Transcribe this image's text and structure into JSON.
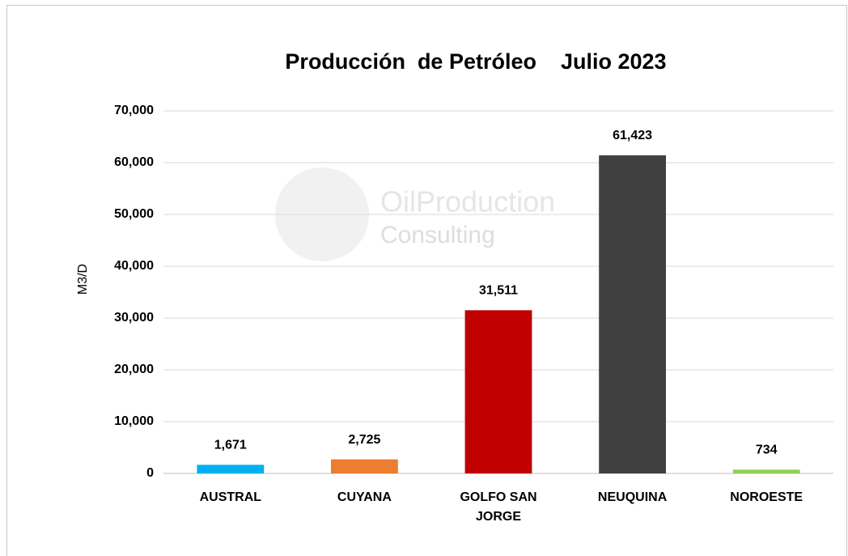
{
  "chart_data": {
    "type": "bar",
    "title": "Producción  de Petróleo    Julio 2023",
    "y_label": "M3/D",
    "watermark": [
      "OilProduction",
      "Consulting"
    ],
    "categories": [
      "AUSTRAL",
      "CUYANA",
      "GOLFO SAN JORGE",
      "NEUQUINA",
      "NOROESTE"
    ],
    "values": [
      1671,
      2725,
      31511,
      61423,
      734
    ],
    "value_labels": [
      "1,671",
      "2,725",
      "31,511",
      "61,423",
      "734"
    ],
    "colors": [
      "#00b0f0",
      "#ed7d31",
      "#c00000",
      "#404040",
      "#92d050"
    ],
    "ylim": [
      0,
      70000
    ],
    "yticks": [
      0,
      {
        "value": 10000,
        "label": "10,000"
      },
      {
        "value": 20000,
        "label": "20,000"
      },
      {
        "value": 30000,
        "label": "30,000"
      },
      {
        "value": 40000,
        "label": "40,000"
      },
      {
        "value": 50000,
        "label": "50,000"
      },
      {
        "value": 60000,
        "label": "60,000"
      },
      {
        "value": 70000,
        "label": "70,000"
      }
    ],
    "grid": true
  }
}
